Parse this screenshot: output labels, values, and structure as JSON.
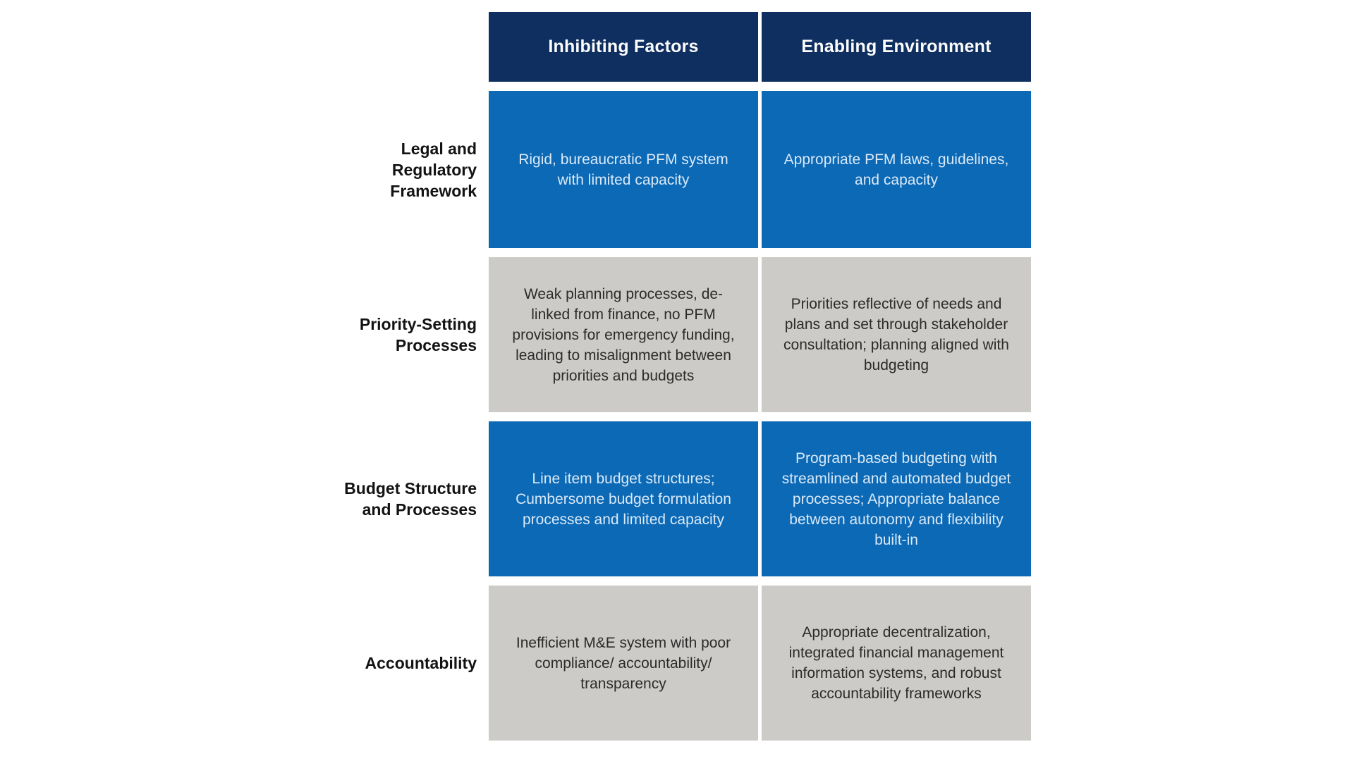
{
  "table": {
    "column_headers": [
      {
        "label": "Inhibiting Factors"
      },
      {
        "label": "Enabling Environment"
      }
    ],
    "rows": [
      {
        "label": "Legal and Regulatory Framework",
        "tone": "blue",
        "inhibiting": "Rigid, bureaucratic PFM system with limited capacity",
        "enabling": "Appropriate PFM laws, guidelines, and capacity"
      },
      {
        "label": "Priority-Setting Processes",
        "tone": "gray",
        "inhibiting": "Weak planning processes, de-linked from finance, no PFM provisions for emergency funding, leading to misalignment between priorities and budgets",
        "enabling": "Priorities reflective of needs and plans and set through stakeholder consultation; planning aligned with budgeting"
      },
      {
        "label": "Budget Structure and Processes",
        "tone": "blue",
        "inhibiting": "Line item budget structures; Cumbersome budget formulation processes and limited capacity",
        "enabling": "Program-based budgeting with streamlined and automated budget processes; Appropriate balance between autonomy and flexibility built-in"
      },
      {
        "label": "Accountability",
        "tone": "gray",
        "inhibiting": "Inefficient M&E system with poor compliance/ accountability/ transparency",
        "enabling": "Appropriate decentralization, integrated financial management information systems, and robust accountability frameworks"
      }
    ]
  },
  "colors": {
    "header_navy": "#0e2f60",
    "cell_blue": "#0c69b6",
    "cell_gray": "#cccbc7",
    "blue_cell_text": "#d9e9f7",
    "gray_cell_text": "#2b2b2b",
    "label_text": "#131313",
    "background": "#ffffff"
  }
}
